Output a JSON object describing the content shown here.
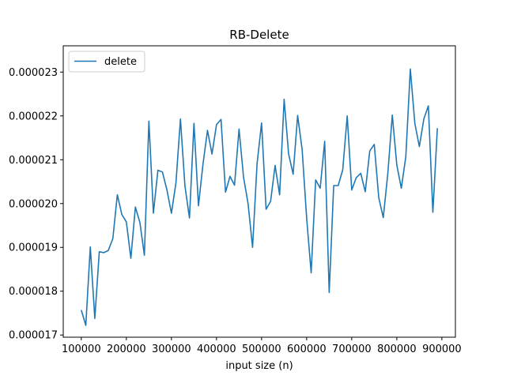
{
  "chart_data": {
    "type": "line",
    "title": "RB-Delete",
    "xlabel": "input size (n)",
    "ylabel": "",
    "xlim": [
      60000,
      930000
    ],
    "ylim": [
      1.695e-05,
      2.36e-05
    ],
    "x_ticks": [
      100000,
      200000,
      300000,
      400000,
      500000,
      600000,
      700000,
      800000,
      900000
    ],
    "x_tick_labels": [
      "100000",
      "200000",
      "300000",
      "400000",
      "500000",
      "600000",
      "700000",
      "800000",
      "900000"
    ],
    "y_ticks": [
      1.7e-05,
      1.8e-05,
      1.9e-05,
      2e-05,
      2.1e-05,
      2.2e-05,
      2.3e-05
    ],
    "y_tick_labels": [
      "0.000017",
      "0.000018",
      "0.000019",
      "0.000020",
      "0.000021",
      "0.000022",
      "0.000023"
    ],
    "grid": false,
    "legend_position": "upper-left",
    "series": [
      {
        "name": "delete",
        "color": "#1f77b4",
        "x": [
          100000,
          110000,
          120000,
          130000,
          140000,
          150000,
          160000,
          170000,
          180000,
          190000,
          200000,
          210000,
          220000,
          230000,
          240000,
          250000,
          260000,
          270000,
          280000,
          290000,
          300000,
          310000,
          320000,
          330000,
          340000,
          350000,
          360000,
          370000,
          380000,
          390000,
          400000,
          410000,
          420000,
          430000,
          440000,
          450000,
          460000,
          470000,
          480000,
          490000,
          500000,
          510000,
          520000,
          530000,
          540000,
          550000,
          560000,
          570000,
          580000,
          590000,
          600000,
          610000,
          620000,
          630000,
          640000,
          650000,
          660000,
          670000,
          680000,
          690000,
          700000,
          710000,
          720000,
          730000,
          740000,
          750000,
          760000,
          770000,
          780000,
          790000,
          800000,
          810000,
          820000,
          830000,
          840000,
          850000,
          860000,
          870000,
          880000,
          890000
        ],
        "y": [
          1.757e-05,
          1.722e-05,
          1.901e-05,
          1.738e-05,
          1.89e-05,
          1.888e-05,
          1.893e-05,
          1.92e-05,
          2.02e-05,
          1.975e-05,
          1.958e-05,
          1.875e-05,
          1.992e-05,
          1.957e-05,
          1.882e-05,
          2.188e-05,
          1.978e-05,
          2.076e-05,
          2.072e-05,
          2.031e-05,
          1.978e-05,
          2.047e-05,
          2.193e-05,
          2.04e-05,
          1.967e-05,
          2.183e-05,
          1.995e-05,
          2.09e-05,
          2.167e-05,
          2.113e-05,
          2.18e-05,
          2.192e-05,
          2.026e-05,
          2.062e-05,
          2.042e-05,
          2.17e-05,
          2.06e-05,
          2e-05,
          1.9e-05,
          2.091e-05,
          2.184e-05,
          1.987e-05,
          2.005e-05,
          2.087e-05,
          2.02e-05,
          2.238e-05,
          2.113e-05,
          2.067e-05,
          2.201e-05,
          2.123e-05,
          1.967e-05,
          1.842e-05,
          2.054e-05,
          2.035e-05,
          2.142e-05,
          1.797e-05,
          2.041e-05,
          2.041e-05,
          2.077e-05,
          2.2e-05,
          2.031e-05,
          2.059e-05,
          2.069e-05,
          2.027e-05,
          2.12e-05,
          2.135e-05,
          2.013e-05,
          1.968e-05,
          2.068e-05,
          2.202e-05,
          2.088e-05,
          2.035e-05,
          2.107e-05,
          2.307e-05,
          2.183e-05,
          2.13e-05,
          2.193e-05,
          2.223e-05,
          1.98e-05,
          2.172e-05
        ]
      }
    ]
  }
}
